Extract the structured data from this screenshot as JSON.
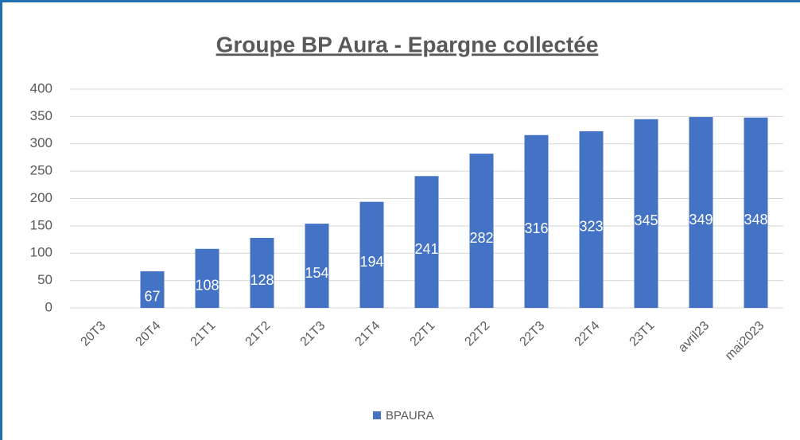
{
  "chart_data": {
    "type": "bar",
    "title": "Groupe BP Aura - Epargne collectée",
    "categories": [
      "20T3",
      "20T4",
      "21T1",
      "21T2",
      "21T3",
      "21T4",
      "22T1",
      "22T2",
      "22T3",
      "22T4",
      "23T1",
      "avril23",
      "mai2023"
    ],
    "series": [
      {
        "name": "BPAURA",
        "color": "#4472c4",
        "values": [
          0,
          67,
          108,
          128,
          154,
          194,
          241,
          282,
          316,
          323,
          345,
          349,
          348
        ]
      }
    ],
    "ylim": [
      0,
      400
    ],
    "yticks": [
      0,
      50,
      100,
      150,
      200,
      250,
      300,
      350,
      400
    ],
    "grid": true,
    "legend": "bottom"
  }
}
